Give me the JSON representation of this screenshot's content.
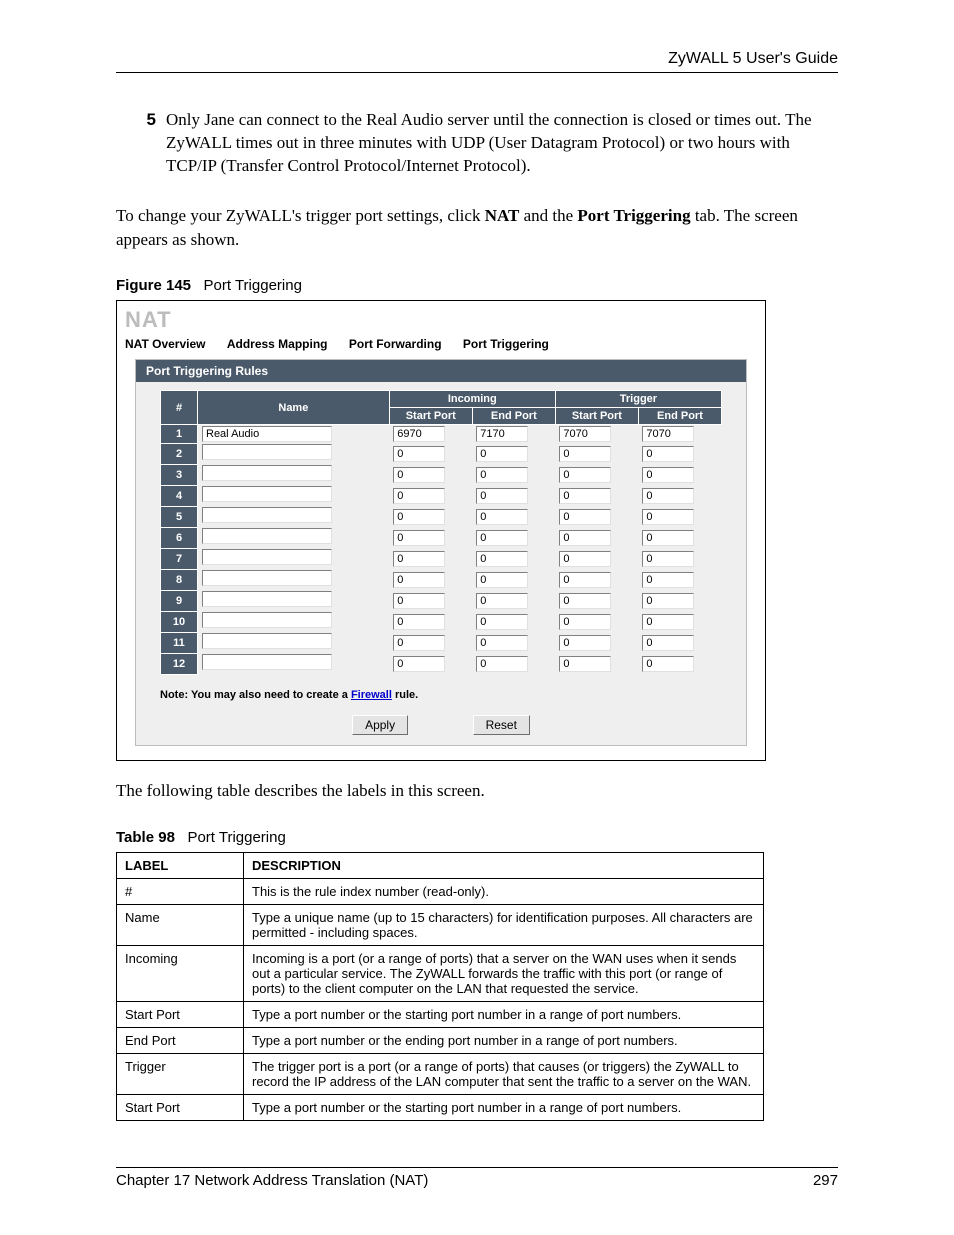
{
  "header": {
    "guide_title": "ZyWALL 5 User's Guide"
  },
  "numbered": {
    "num": "5",
    "text": "Only Jane can connect to the Real Audio server until the connection is closed or times out. The ZyWALL times out in three minutes with UDP (User Datagram Protocol) or two hours with TCP/IP (Transfer Control Protocol/Internet Protocol)."
  },
  "lead_para": {
    "pre": "To change your ZyWALL's trigger port settings, click ",
    "b1": "NAT",
    "mid": " and the ",
    "b2": "Port Triggering",
    "post": " tab. The screen appears as shown."
  },
  "figure": {
    "label": "Figure 145",
    "title": "Port Triggering"
  },
  "shot": {
    "title": "NAT",
    "tabs": [
      "NAT Overview",
      "Address Mapping",
      "Port Forwarding",
      "Port Triggering"
    ],
    "section": "Port Triggering Rules",
    "headers": {
      "idx": "#",
      "name": "Name",
      "incoming": "Incoming",
      "trigger": "Trigger",
      "start": "Start Port",
      "end": "End Port"
    },
    "rows": [
      {
        "i": "1",
        "name": "Real Audio",
        "is": "6970",
        "ie": "7170",
        "ts": "7070",
        "te": "7070"
      },
      {
        "i": "2",
        "name": "",
        "is": "0",
        "ie": "0",
        "ts": "0",
        "te": "0"
      },
      {
        "i": "3",
        "name": "",
        "is": "0",
        "ie": "0",
        "ts": "0",
        "te": "0"
      },
      {
        "i": "4",
        "name": "",
        "is": "0",
        "ie": "0",
        "ts": "0",
        "te": "0"
      },
      {
        "i": "5",
        "name": "",
        "is": "0",
        "ie": "0",
        "ts": "0",
        "te": "0"
      },
      {
        "i": "6",
        "name": "",
        "is": "0",
        "ie": "0",
        "ts": "0",
        "te": "0"
      },
      {
        "i": "7",
        "name": "",
        "is": "0",
        "ie": "0",
        "ts": "0",
        "te": "0"
      },
      {
        "i": "8",
        "name": "",
        "is": "0",
        "ie": "0",
        "ts": "0",
        "te": "0"
      },
      {
        "i": "9",
        "name": "",
        "is": "0",
        "ie": "0",
        "ts": "0",
        "te": "0"
      },
      {
        "i": "10",
        "name": "",
        "is": "0",
        "ie": "0",
        "ts": "0",
        "te": "0"
      },
      {
        "i": "11",
        "name": "",
        "is": "0",
        "ie": "0",
        "ts": "0",
        "te": "0"
      },
      {
        "i": "12",
        "name": "",
        "is": "0",
        "ie": "0",
        "ts": "0",
        "te": "0"
      }
    ],
    "note_pre": "Note: You may also need to create a ",
    "note_link": "Firewall",
    "note_post": " rule.",
    "apply": "Apply",
    "reset": "Reset"
  },
  "after_fig_para": "The following table describes the labels in this screen.",
  "table_cap": {
    "label": "Table 98",
    "title": "Port Triggering"
  },
  "desc": {
    "h_label": "LABEL",
    "h_desc": "DESCRIPTION",
    "rows": [
      {
        "l": "#",
        "d": "This is the rule index number (read-only)."
      },
      {
        "l": "Name",
        "d": "Type a unique name (up to 15 characters) for identification purposes. All characters are permitted - including spaces."
      },
      {
        "l": "Incoming",
        "d": "Incoming is a port (or a range of ports) that a server on the WAN uses when it sends out a particular service. The ZyWALL forwards the traffic with this port (or range of ports) to the client computer on the LAN that requested the service."
      },
      {
        "l": "Start Port",
        "d": "Type a port number or the starting port number in a range of port numbers."
      },
      {
        "l": "End Port",
        "d": "Type a port number or the ending port number in a range of port numbers."
      },
      {
        "l": "Trigger",
        "d": "The trigger port is a port (or a range of ports) that causes (or triggers) the ZyWALL to record the IP address of the LAN computer that sent the traffic to a server on the WAN."
      },
      {
        "l": "Start Port",
        "d": "Type a port number or the starting port number in a range of port numbers."
      }
    ]
  },
  "footer": {
    "chapter": "Chapter 17 Network Address Translation (NAT)",
    "page": "297"
  }
}
